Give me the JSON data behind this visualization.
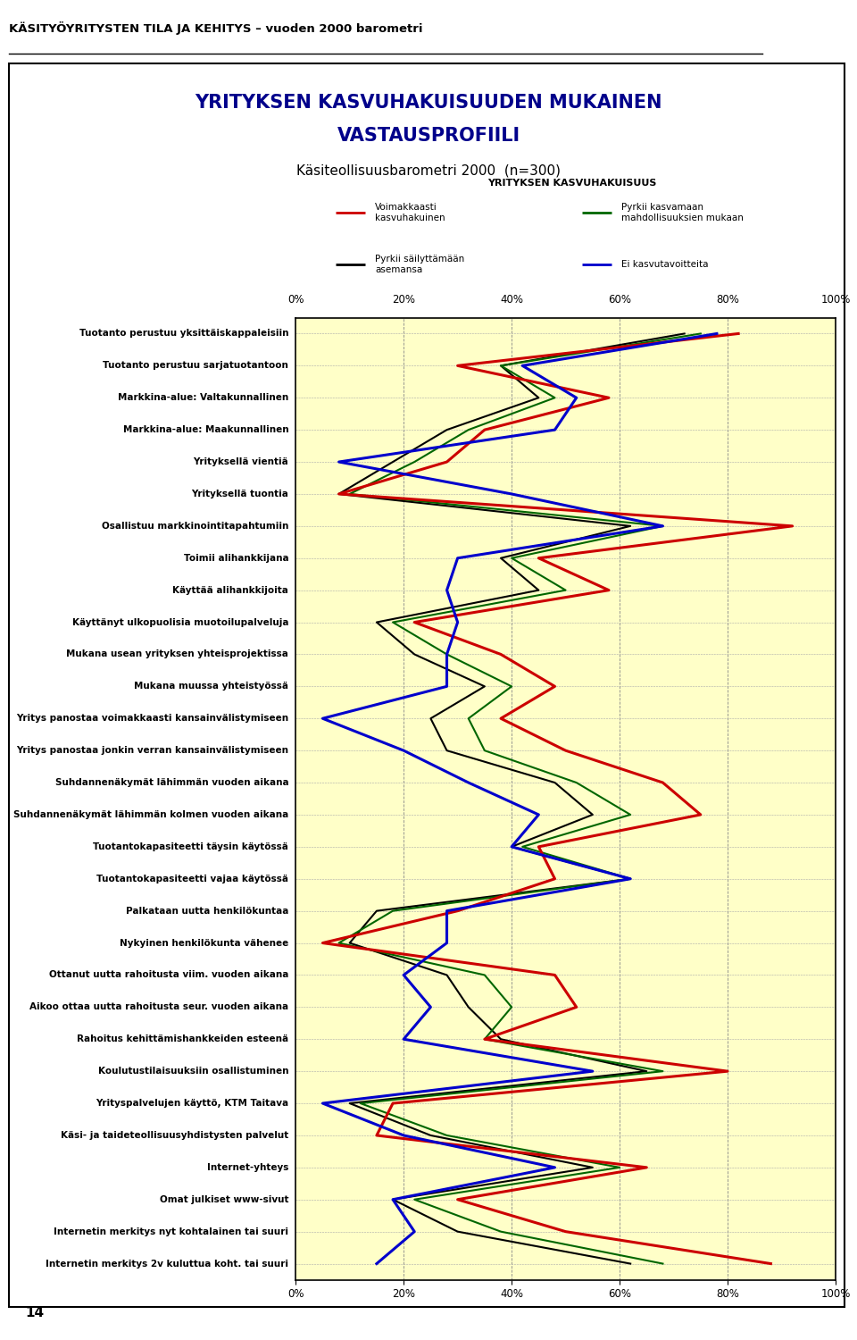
{
  "title_line1": "YRITYKSEN KASVUHAKUISUUDEN MUKAINEN",
  "title_line2": "VASTAUSPROFIILI",
  "subtitle": "Käsiteollisuusbarometri 2000  (n=300)",
  "header_title": "KÄSITYÖYRITYSTEN TILA JA KEHITYS – vuoden 2000 barometri",
  "legend_title": "YRITYKSEN KASVUHAKUISUUS",
  "y_labels": [
    "Tuotanto perustuu yksittäiskappaleisiin",
    "Tuotanto perustuu sarjatuotantoon",
    "Markkina-alue: Valtakunnallinen",
    "Markkina-alue: Maakunnallinen",
    "Yrityksellä vientiä",
    "Yrityksellä tuontia",
    "Osallistuu markkinointitapahtumiin",
    "Toimii alihankkijana",
    "Käyttää alihankkijoita",
    "Käyttänyt ulkopuolisia muotoilupalveluja",
    "Mukana usean yrityksen yhteisprojektissa",
    "Mukana muussa yhteistyössä",
    "Yritys panostaa voimakkaasti kansainvälistymiseen",
    "Yritys panostaa jonkin verran kansainvälistymiseen",
    "Suhdannenäkymät lähimmän vuoden aikana",
    "Suhdannenäkymät lähimmän kolmen vuoden aikana",
    "Tuotantokapasiteetti täysin käytössä",
    "Tuotantokapasiteetti vajaa käytössä",
    "Palkataan uutta henkilökuntaa",
    "Nykyinen henkilökunta vähenee",
    "Ottanut uutta rahoitusta viim. vuoden aikana",
    "Aikoo ottaa uutta rahoitusta seur. vuoden aikana",
    "Rahoitus kehittämishankkeiden esteenä",
    "Koulutustilaisuuksiin osallistuminen",
    "Yrityspalvelujen käyttö, KTM Taitava",
    "Käsi- ja taideteollisuusyhdistysten palvelut",
    "Internet-yhteys",
    "Omat julkiset www-sivut",
    "Internetin merkitys nyt kohtalainen tai suuri",
    "Internetin merkitys 2v kuluttua koht. tai suuri"
  ],
  "red": [
    82,
    30,
    58,
    35,
    28,
    8,
    92,
    45,
    58,
    22,
    38,
    48,
    38,
    50,
    68,
    75,
    45,
    48,
    30,
    5,
    48,
    52,
    35,
    80,
    18,
    15,
    65,
    30,
    50,
    88
  ],
  "green": [
    75,
    38,
    48,
    32,
    22,
    10,
    68,
    40,
    50,
    18,
    28,
    40,
    32,
    35,
    52,
    62,
    42,
    62,
    18,
    8,
    35,
    40,
    35,
    68,
    12,
    28,
    60,
    22,
    38,
    68
  ],
  "black": [
    72,
    38,
    45,
    28,
    18,
    8,
    62,
    38,
    45,
    15,
    22,
    35,
    25,
    28,
    48,
    55,
    40,
    62,
    15,
    10,
    28,
    32,
    38,
    65,
    10,
    25,
    55,
    18,
    30,
    62
  ],
  "blue": [
    78,
    42,
    52,
    48,
    8,
    40,
    68,
    30,
    28,
    30,
    28,
    28,
    5,
    20,
    32,
    45,
    40,
    62,
    28,
    28,
    20,
    25,
    20,
    55,
    5,
    20,
    48,
    18,
    22,
    15
  ],
  "bg_color": "#ffffc8",
  "page_bg": "#ffffff",
  "colors": {
    "red": "#cc0000",
    "green": "#006600",
    "black": "#000000",
    "blue": "#0000cc"
  }
}
